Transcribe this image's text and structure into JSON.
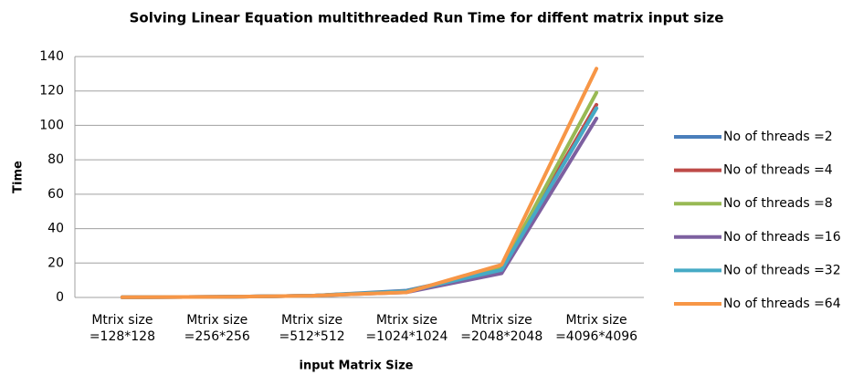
{
  "chart_data": {
    "type": "line",
    "title": "Solving Linear Equation multithreaded Run Time for diffent matrix input size",
    "x_label": "input Matrix Size",
    "y_label": "Time",
    "categories": [
      "Mtrix size\n=128*128",
      "Mtrix size\n=256*256",
      "Mtrix size\n=512*512",
      "Mtrix size\n=1024*1024",
      "Mtrix size\n=2048*2048",
      "Mtrix size\n=4096*4096"
    ],
    "series": [
      {
        "name": "No of threads =2",
        "color": "#4a7ebb",
        "values": [
          0.1,
          0.3,
          1,
          4,
          16,
          110
        ]
      },
      {
        "name": "No of threads =4",
        "color": "#be4b48",
        "values": [
          0.1,
          0.3,
          1,
          3.5,
          17,
          112
        ]
      },
      {
        "name": "No of threads =8",
        "color": "#98b954",
        "values": [
          0.1,
          0.3,
          1,
          3.5,
          17,
          119
        ]
      },
      {
        "name": "No of threads =16",
        "color": "#7d60a0",
        "values": [
          0.1,
          0.3,
          1,
          3,
          14,
          104
        ]
      },
      {
        "name": "No of threads =32",
        "color": "#46aac5",
        "values": [
          0.1,
          0.3,
          1,
          3.5,
          16,
          110
        ]
      },
      {
        "name": "No of threads =64",
        "color": "#f79646",
        "values": [
          0.1,
          0.3,
          1,
          3,
          19,
          133
        ]
      }
    ],
    "ylim": [
      0,
      140
    ],
    "yticks": [
      0,
      20,
      40,
      60,
      80,
      100,
      120,
      140
    ],
    "grid": true,
    "legend": "right"
  }
}
